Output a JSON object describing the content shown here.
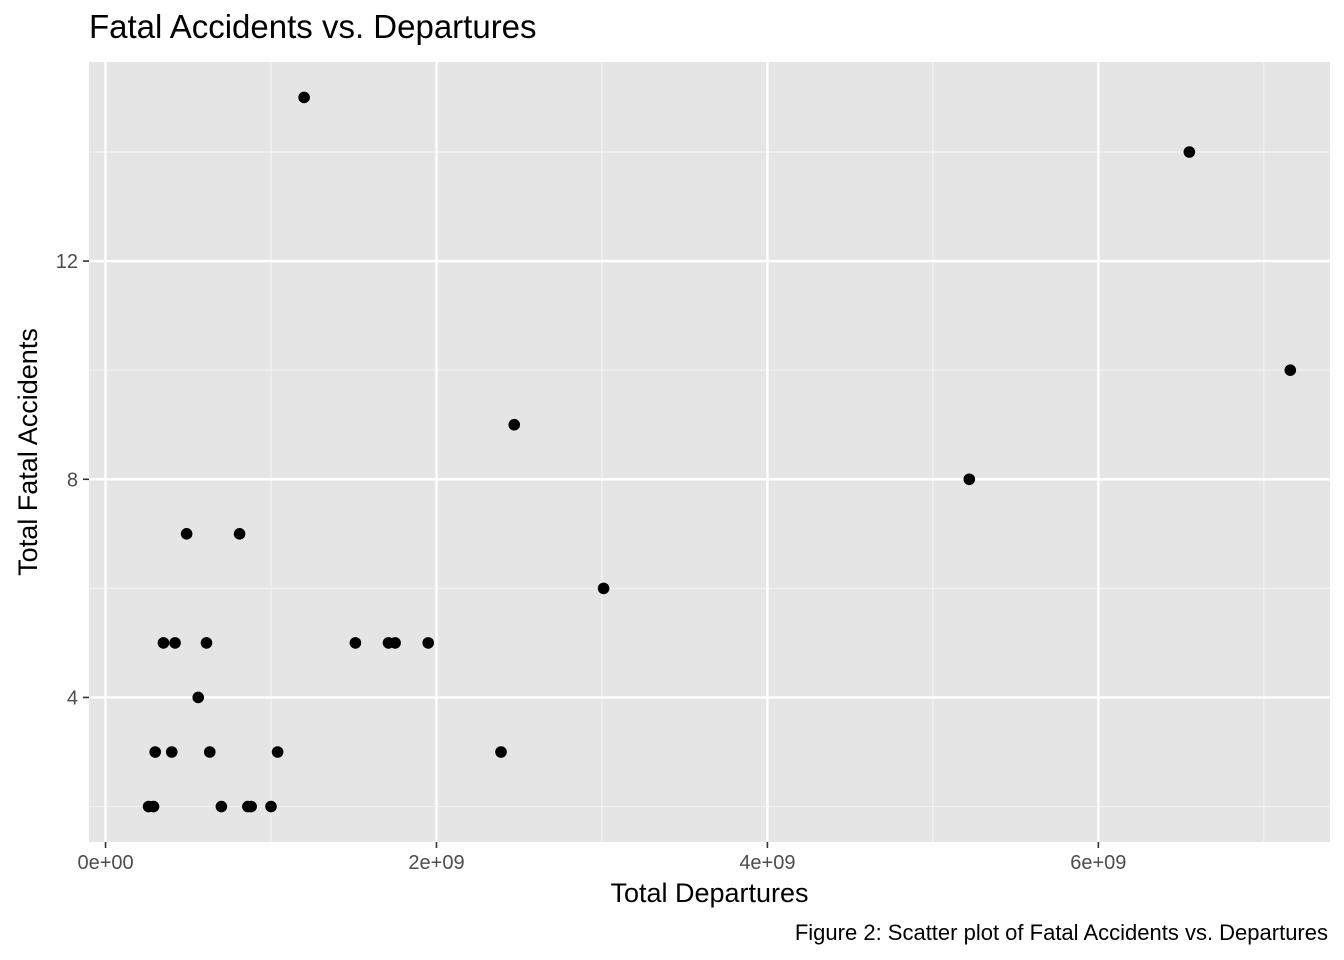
{
  "chart_data": {
    "type": "scatter",
    "title": "Fatal Accidents vs. Departures",
    "caption": "Figure 2: Scatter plot of Fatal Accidents vs. Departures",
    "xlabel": "Total Departures",
    "ylabel": "Total Fatal Accidents",
    "xlim": [
      -100000000,
      7400000000
    ],
    "ylim": [
      1.35,
      15.65
    ],
    "x_ticks": [
      0,
      2000000000,
      4000000000,
      6000000000
    ],
    "x_tick_labels": [
      "0e+00",
      "2e+09",
      "4e+09",
      "6e+09"
    ],
    "y_ticks": [
      4,
      8,
      12
    ],
    "y_tick_labels": [
      "4",
      "8",
      "12"
    ],
    "grid": true,
    "background": "#e5e5e5",
    "point_color": "#000000",
    "points": [
      {
        "x": 1200000000,
        "y": 15
      },
      {
        "x": 6550000000,
        "y": 14
      },
      {
        "x": 7160000000,
        "y": 10
      },
      {
        "x": 2470000000,
        "y": 9
      },
      {
        "x": 5220000000,
        "y": 8
      },
      {
        "x": 490000000,
        "y": 7
      },
      {
        "x": 810000000,
        "y": 7
      },
      {
        "x": 3010000000,
        "y": 6
      },
      {
        "x": 350000000,
        "y": 5
      },
      {
        "x": 420000000,
        "y": 5
      },
      {
        "x": 610000000,
        "y": 5
      },
      {
        "x": 1510000000,
        "y": 5
      },
      {
        "x": 1710000000,
        "y": 5
      },
      {
        "x": 1750000000,
        "y": 5
      },
      {
        "x": 1950000000,
        "y": 5
      },
      {
        "x": 560000000,
        "y": 4
      },
      {
        "x": 300000000,
        "y": 3
      },
      {
        "x": 400000000,
        "y": 3
      },
      {
        "x": 630000000,
        "y": 3
      },
      {
        "x": 1040000000,
        "y": 3
      },
      {
        "x": 2390000000,
        "y": 3
      },
      {
        "x": 260000000,
        "y": 2
      },
      {
        "x": 290000000,
        "y": 2
      },
      {
        "x": 700000000,
        "y": 2
      },
      {
        "x": 860000000,
        "y": 2
      },
      {
        "x": 880000000,
        "y": 2
      },
      {
        "x": 1000000000,
        "y": 2
      }
    ]
  }
}
